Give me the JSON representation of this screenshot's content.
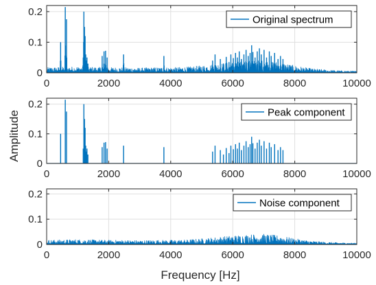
{
  "figure": {
    "xlabel": "Frequency [Hz]",
    "ylabel": "Amplitude"
  },
  "colors": {
    "series": "#0072BD",
    "axes": "#262626",
    "grid": "#dfdfdf"
  },
  "chart_data": [
    {
      "type": "line",
      "legend": "Original spectrum",
      "legend_location": "top-right",
      "grid": true,
      "xlim": [
        0,
        10000
      ],
      "ylim": [
        0,
        0.22
      ],
      "xticks": [
        0,
        2000,
        4000,
        6000,
        8000,
        10000
      ],
      "xtick_labels": [
        "0",
        "2000",
        "4000",
        "6000",
        "8000",
        "10000"
      ],
      "yticks": [
        0,
        0.1,
        0.2
      ],
      "ytick_labels": [
        "0",
        "0.1",
        "0.2"
      ],
      "components": [
        "peak",
        "noise"
      ],
      "series": [
        {
          "name": "Original spectrum",
          "x": [],
          "y": []
        }
      ]
    },
    {
      "type": "line",
      "legend": "Peak component",
      "legend_location": "top-right",
      "grid": true,
      "xlim": [
        0,
        10000
      ],
      "ylim": [
        0,
        0.22
      ],
      "xticks": [
        0,
        2000,
        4000,
        6000,
        8000,
        10000
      ],
      "xtick_labels": [
        "0",
        "2000",
        "4000",
        "6000",
        "8000",
        "10000"
      ],
      "yticks": [
        0,
        0.1,
        0.2
      ],
      "ytick_labels": [
        "0",
        "0.1",
        "0.2"
      ],
      "series": [
        {
          "name": "Peak component",
          "x": [
            450,
            600,
            640,
            1180,
            1200,
            1220,
            1240,
            1260,
            1280,
            1300,
            1330,
            1790,
            1850,
            1900,
            1950,
            2480,
            3780,
            5350,
            5430,
            5600,
            5700,
            5790,
            5880,
            5940,
            6020,
            6090,
            6150,
            6210,
            6280,
            6360,
            6430,
            6500,
            6560,
            6610,
            6650,
            6720,
            6790,
            6860,
            6920,
            7010,
            7090,
            7180,
            7240,
            7350,
            7460,
            7540,
            7620
          ],
          "y": [
            0.1,
            0.215,
            0.175,
            0.05,
            0.2,
            0.15,
            0.12,
            0.06,
            0.04,
            0.05,
            0.03,
            0.055,
            0.07,
            0.072,
            0.05,
            0.06,
            0.055,
            0.04,
            0.06,
            0.045,
            0.03,
            0.052,
            0.035,
            0.06,
            0.048,
            0.065,
            0.05,
            0.07,
            0.045,
            0.06,
            0.075,
            0.055,
            0.065,
            0.09,
            0.068,
            0.05,
            0.07,
            0.08,
            0.06,
            0.075,
            0.05,
            0.07,
            0.055,
            0.065,
            0.045,
            0.055,
            0.045
          ]
        }
      ]
    },
    {
      "type": "line",
      "legend": "Noise component",
      "legend_location": "top-right",
      "grid": true,
      "xlim": [
        0,
        10000
      ],
      "ylim": [
        0,
        0.22
      ],
      "xticks": [
        0,
        2000,
        4000,
        6000,
        8000,
        10000
      ],
      "xtick_labels": [
        "0",
        "2000",
        "4000",
        "6000",
        "8000",
        "10000"
      ],
      "yticks": [
        0,
        0.1,
        0.2
      ],
      "ytick_labels": [
        "0",
        "0.1",
        "0.2"
      ],
      "series": [
        {
          "name": "Noise component",
          "x": [
            0,
            500,
            1000,
            1500,
            2000,
            2500,
            3000,
            3500,
            4000,
            4500,
            5000,
            5500,
            6000,
            6500,
            7000,
            7500,
            8000,
            8500,
            9000,
            9500,
            10000
          ],
          "y": [
            0.012,
            0.013,
            0.014,
            0.013,
            0.012,
            0.012,
            0.011,
            0.012,
            0.012,
            0.013,
            0.016,
            0.02,
            0.024,
            0.027,
            0.028,
            0.024,
            0.016,
            0.01,
            0.007,
            0.005,
            0.004
          ]
        }
      ]
    }
  ]
}
